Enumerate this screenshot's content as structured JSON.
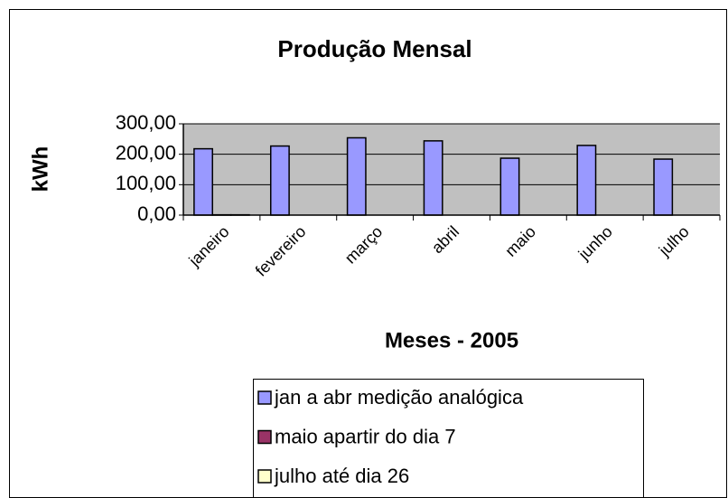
{
  "chart_data": {
    "type": "bar",
    "title": "Produção Mensal",
    "y_label": "kWh",
    "x_label": "Meses - 2005",
    "categories": [
      "janeiro",
      "fevereiro",
      "março",
      "abril",
      "maio",
      "junho",
      "julho"
    ],
    "series": [
      {
        "name": "jan a abr medição analógica",
        "color": "#9999ff",
        "values": [
          218,
          227,
          254,
          244,
          187,
          229,
          184
        ]
      },
      {
        "name": "maio apartir do dia 7",
        "color": "#993366",
        "values": [
          1,
          null,
          null,
          null,
          null,
          null,
          null
        ]
      },
      {
        "name": "julho até dia 26",
        "color": "#ffffcc",
        "values": [
          1,
          null,
          null,
          null,
          null,
          null,
          null
        ]
      }
    ],
    "ylim": [
      0,
      300
    ],
    "yticks": [
      {
        "value": 0,
        "label": "0,00"
      },
      {
        "value": 100,
        "label": "100,00"
      },
      {
        "value": 200,
        "label": "200,00"
      },
      {
        "value": 300,
        "label": "300,00"
      }
    ],
    "grid": true,
    "plot_background": "#c0c0c0"
  }
}
